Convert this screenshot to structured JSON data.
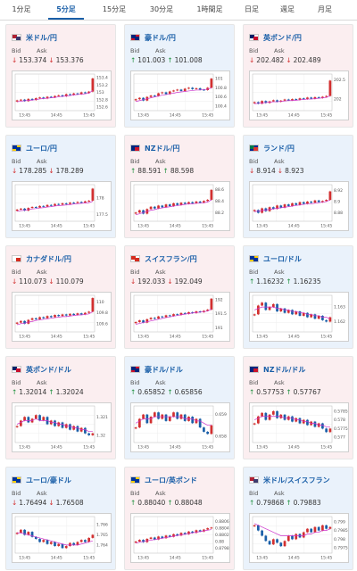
{
  "tabs": [
    {
      "label": "1分足",
      "active": false
    },
    {
      "label": "5分足",
      "active": true
    },
    {
      "label": "15分足",
      "active": false
    },
    {
      "label": "30分足",
      "active": false
    },
    {
      "label": "1時間足",
      "active": false
    },
    {
      "label": "日足",
      "active": false
    },
    {
      "label": "週足",
      "active": false
    },
    {
      "label": "月足",
      "active": false
    }
  ],
  "bid_label": "Bid",
  "ask_label": "Ask",
  "colors": {
    "up": "#1a8f3a",
    "down": "#d23030",
    "ma": "#cc33cc",
    "accent": "#1a5fa8"
  },
  "cards": [
    {
      "pair": "米ドル/円",
      "flag": "us-flag",
      "bg": "pink",
      "dir": "down",
      "bid": "153.374",
      "ask": "153.376",
      "chart_data": {
        "type": "candlestick",
        "x_ticks": [
          "13:45",
          "14:45",
          "15:45"
        ],
        "y_ticks": [
          "153.4",
          "153.2",
          "153",
          "152.8",
          "152.6"
        ],
        "ylim": [
          152.5,
          153.5
        ],
        "close": [
          152.78,
          152.8,
          152.76,
          152.82,
          152.79,
          152.84,
          152.86,
          152.83,
          152.88,
          152.86,
          152.9,
          152.92,
          152.89,
          152.95,
          152.93,
          152.97,
          152.95,
          153.0,
          152.98,
          153.02,
          153.38
        ],
        "ma": [
          152.74,
          152.76,
          152.77,
          152.78,
          152.79,
          152.8,
          152.82,
          152.83,
          152.84,
          152.85,
          152.86,
          152.88,
          152.89,
          152.9,
          152.91,
          152.93,
          152.94,
          152.95,
          152.96,
          152.98,
          153.05
        ]
      }
    },
    {
      "pair": "豪ドル/円",
      "flag": "au-flag",
      "bg": "blue",
      "dir": "up",
      "bid": "101.003",
      "ask": "101.008",
      "chart_data": {
        "type": "candlestick",
        "x_ticks": [
          "13:45",
          "14:45",
          "15:45"
        ],
        "y_ticks": [
          "101",
          "100.8",
          "100.6",
          "100.4"
        ],
        "ylim": [
          100.3,
          101.1
        ],
        "close": [
          100.55,
          100.58,
          100.52,
          100.6,
          100.63,
          100.62,
          100.68,
          100.7,
          100.66,
          100.72,
          100.74,
          100.76,
          100.73,
          100.78,
          100.8,
          100.77,
          100.79,
          100.76,
          100.75,
          100.8,
          101.0
        ],
        "ma": [
          100.5,
          100.52,
          100.54,
          100.56,
          100.58,
          100.6,
          100.62,
          100.64,
          100.65,
          100.67,
          100.68,
          100.7,
          100.71,
          100.72,
          100.73,
          100.74,
          100.75,
          100.75,
          100.76,
          100.77,
          100.8
        ]
      }
    },
    {
      "pair": "英ポンド/円",
      "flag": "gb-flag",
      "bg": "pink",
      "dir": "down",
      "bid": "202.482",
      "ask": "202.489",
      "chart_data": {
        "type": "candlestick",
        "x_ticks": [
          "13:45",
          "14:45",
          "15:45"
        ],
        "y_ticks": [
          "202.5",
          "202"
        ],
        "ylim": [
          201.7,
          202.65
        ],
        "close": [
          201.92,
          201.88,
          201.95,
          201.9,
          201.94,
          201.97,
          201.93,
          201.96,
          201.99,
          201.97,
          202.0,
          201.98,
          202.02,
          202.0,
          202.04,
          202.01,
          202.05,
          202.03,
          202.06,
          202.08,
          202.48
        ],
        "ma": [
          201.88,
          201.89,
          201.9,
          201.91,
          201.92,
          201.93,
          201.93,
          201.94,
          201.95,
          201.96,
          201.96,
          201.97,
          201.98,
          201.99,
          202.0,
          202.0,
          202.01,
          202.02,
          202.03,
          202.04,
          202.09
        ]
      }
    },
    {
      "pair": "ユーロ/円",
      "flag": "eu-flag",
      "bg": "blue",
      "dir": "down",
      "bid": "178.285",
      "ask": "178.289",
      "chart_data": {
        "type": "candlestick",
        "x_ticks": [
          "13:45",
          "14:45",
          "15:45"
        ],
        "y_ticks": [
          "178",
          "177.5"
        ],
        "ylim": [
          177.3,
          178.4
        ],
        "close": [
          177.65,
          177.68,
          177.62,
          177.7,
          177.73,
          177.71,
          177.76,
          177.74,
          177.79,
          177.77,
          177.82,
          177.8,
          177.84,
          177.82,
          177.86,
          177.85,
          177.88,
          177.86,
          177.9,
          177.92,
          178.28
        ],
        "ma": [
          177.6,
          177.62,
          177.63,
          177.65,
          177.67,
          177.68,
          177.7,
          177.71,
          177.73,
          177.74,
          177.76,
          177.77,
          177.78,
          177.79,
          177.8,
          177.82,
          177.83,
          177.84,
          177.85,
          177.86,
          177.9
        ]
      }
    },
    {
      "pair": "NZドル/円",
      "flag": "nz-flag",
      "bg": "pink",
      "dir": "up",
      "bid": "88.591",
      "ask": "88.598",
      "chart_data": {
        "type": "candlestick",
        "x_ticks": [
          "13:45",
          "14:45",
          "15:45"
        ],
        "y_ticks": [
          "88.6",
          "88.4",
          "88.2"
        ],
        "ylim": [
          88.05,
          88.68
        ],
        "close": [
          88.2,
          88.24,
          88.18,
          88.26,
          88.3,
          88.27,
          88.32,
          88.29,
          88.34,
          88.31,
          88.36,
          88.33,
          88.37,
          88.35,
          88.38,
          88.36,
          88.39,
          88.37,
          88.4,
          88.42,
          88.59
        ],
        "ma": [
          88.16,
          88.18,
          88.2,
          88.22,
          88.24,
          88.25,
          88.27,
          88.28,
          88.29,
          88.3,
          88.31,
          88.32,
          88.33,
          88.34,
          88.35,
          88.35,
          88.36,
          88.36,
          88.37,
          88.38,
          88.42
        ]
      }
    },
    {
      "pair": "ランド/円",
      "flag": "za-flag",
      "bg": "blue",
      "dir": "down",
      "bid": "8.914",
      "ask": "8.923",
      "chart_data": {
        "type": "candlestick",
        "x_ticks": [
          "13:45",
          "14:45",
          "15:45"
        ],
        "y_ticks": [
          "8.92",
          "8.9",
          "8.88"
        ],
        "ylim": [
          8.865,
          8.93
        ],
        "close": [
          8.885,
          8.88,
          8.888,
          8.883,
          8.89,
          8.887,
          8.893,
          8.889,
          8.895,
          8.892,
          8.897,
          8.894,
          8.899,
          8.896,
          8.9,
          8.898,
          8.902,
          8.899,
          8.901,
          8.903,
          8.918
        ],
        "ma": [
          8.882,
          8.883,
          8.884,
          8.885,
          8.886,
          8.887,
          8.888,
          8.889,
          8.89,
          8.891,
          8.892,
          8.893,
          8.894,
          8.895,
          8.896,
          8.896,
          8.897,
          8.898,
          8.899,
          8.9,
          8.903
        ]
      }
    },
    {
      "pair": "カナダドル/円",
      "flag": "ca-flag",
      "bg": "pink",
      "dir": "down",
      "bid": "110.073",
      "ask": "110.079",
      "chart_data": {
        "type": "candlestick",
        "x_ticks": [
          "13:45",
          "14:45",
          "15:45"
        ],
        "y_ticks": [
          "110",
          "109.8",
          "109.6"
        ],
        "ylim": [
          109.45,
          110.12
        ],
        "close": [
          109.62,
          109.65,
          109.6,
          109.67,
          109.7,
          109.68,
          109.72,
          109.7,
          109.74,
          109.72,
          109.76,
          109.74,
          109.77,
          109.75,
          109.78,
          109.76,
          109.79,
          109.77,
          109.8,
          109.82,
          110.07
        ],
        "ma": [
          109.58,
          109.6,
          109.61,
          109.63,
          109.64,
          109.66,
          109.67,
          109.68,
          109.69,
          109.7,
          109.71,
          109.72,
          109.73,
          109.73,
          109.74,
          109.75,
          109.76,
          109.76,
          109.77,
          109.78,
          109.82
        ]
      }
    },
    {
      "pair": "スイスフラン/円",
      "flag": "ch-flag",
      "bg": "pink",
      "dir": "down",
      "bid": "192.033",
      "ask": "192.049",
      "chart_data": {
        "type": "candlestick",
        "x_ticks": [
          "13:45",
          "14:45",
          "15:45"
        ],
        "y_ticks": [
          "192",
          "191.5",
          "191"
        ],
        "ylim": [
          190.85,
          192.15
        ],
        "close": [
          191.2,
          191.26,
          191.18,
          191.3,
          191.35,
          191.32,
          191.4,
          191.37,
          191.44,
          191.41,
          191.48,
          191.45,
          191.52,
          191.49,
          191.55,
          191.52,
          191.58,
          191.55,
          191.6,
          191.64,
          192.03
        ],
        "ma": [
          191.12,
          191.15,
          191.18,
          191.21,
          191.24,
          191.27,
          191.3,
          191.33,
          191.36,
          191.38,
          191.41,
          191.43,
          191.46,
          191.48,
          191.5,
          191.52,
          191.54,
          191.55,
          191.57,
          191.59,
          191.66
        ]
      }
    },
    {
      "pair": "ユーロ/ドル",
      "flag": "eu-flag",
      "bg": "blue",
      "dir": "up",
      "bid": "1.16232",
      "ask": "1.16235",
      "chart_data": {
        "type": "candlestick",
        "x_ticks": [
          "13:45",
          "14:45",
          "15:45"
        ],
        "y_ticks": [
          "1.163",
          "1.162"
        ],
        "ylim": [
          1.1613,
          1.1638
        ],
        "close": [
          1.1625,
          1.1631,
          1.1633,
          1.1628,
          1.163,
          1.1632,
          1.1627,
          1.1629,
          1.1626,
          1.1628,
          1.1625,
          1.1627,
          1.1624,
          1.1626,
          1.1623,
          1.1625,
          1.1622,
          1.1624,
          1.1621,
          1.162,
          1.1623
        ],
        "ma": [
          1.1628,
          1.1629,
          1.163,
          1.163,
          1.163,
          1.163,
          1.1629,
          1.1629,
          1.1628,
          1.1628,
          1.1627,
          1.1627,
          1.1626,
          1.1626,
          1.1625,
          1.1625,
          1.1624,
          1.1624,
          1.1623,
          1.1623,
          1.1622
        ]
      }
    },
    {
      "pair": "英ポンド/ドル",
      "flag": "gb-flag",
      "bg": "pink",
      "dir": "up",
      "bid": "1.32014",
      "ask": "1.32024",
      "chart_data": {
        "type": "candlestick",
        "x_ticks": [
          "13:45",
          "14:45",
          "15:45"
        ],
        "y_ticks": [
          "1.321",
          "1.32"
        ],
        "ylim": [
          1.3196,
          1.3216
        ],
        "close": [
          1.3205,
          1.3208,
          1.321,
          1.3207,
          1.3209,
          1.3211,
          1.3208,
          1.321,
          1.3206,
          1.3208,
          1.3205,
          1.3207,
          1.3204,
          1.3206,
          1.3203,
          1.3205,
          1.3202,
          1.3204,
          1.3201,
          1.32,
          1.3201
        ],
        "ma": [
          1.3206,
          1.3207,
          1.3208,
          1.3208,
          1.3208,
          1.3209,
          1.3208,
          1.3208,
          1.3208,
          1.3207,
          1.3207,
          1.3206,
          1.3206,
          1.3205,
          1.3205,
          1.3204,
          1.3204,
          1.3203,
          1.3203,
          1.3202,
          1.3202
        ]
      }
    },
    {
      "pair": "豪ドル/ドル",
      "flag": "au-flag",
      "bg": "blue",
      "dir": "up",
      "bid": "0.65852",
      "ask": "0.65856",
      "chart_data": {
        "type": "candlestick",
        "x_ticks": [
          "13:45",
          "14:45",
          "15:45"
        ],
        "y_ticks": [
          "0.659",
          "0.658"
        ],
        "ylim": [
          0.6577,
          0.6594
        ],
        "close": [
          0.6584,
          0.6588,
          0.659,
          0.6586,
          0.6589,
          0.6591,
          0.6588,
          0.659,
          0.6587,
          0.6589,
          0.6591,
          0.6588,
          0.659,
          0.6587,
          0.6589,
          0.6586,
          0.6588,
          0.6584,
          0.6582,
          0.6581,
          0.6585
        ],
        "ma": [
          0.6586,
          0.6587,
          0.6588,
          0.6588,
          0.6588,
          0.6589,
          0.6589,
          0.6589,
          0.6589,
          0.6589,
          0.6589,
          0.6589,
          0.6589,
          0.6588,
          0.6588,
          0.6588,
          0.6587,
          0.6587,
          0.6586,
          0.6585,
          0.6585
        ]
      }
    },
    {
      "pair": "NZドル/ドル",
      "flag": "nz-flag",
      "bg": "pink",
      "dir": "up",
      "bid": "0.57753",
      "ask": "0.57767",
      "chart_data": {
        "type": "candlestick",
        "x_ticks": [
          "13:45",
          "14:45",
          "15:45"
        ],
        "y_ticks": [
          "0.5785",
          "0.578",
          "0.5775",
          "0.577"
        ],
        "ylim": [
          0.5767,
          0.5788
        ],
        "close": [
          0.5778,
          0.5782,
          0.5784,
          0.578,
          0.5783,
          0.5785,
          0.5781,
          0.5783,
          0.578,
          0.5782,
          0.5779,
          0.5781,
          0.5778,
          0.578,
          0.5777,
          0.5779,
          0.5776,
          0.5778,
          0.5775,
          0.5773,
          0.5775
        ],
        "ma": [
          0.578,
          0.5781,
          0.5782,
          0.5782,
          0.5782,
          0.5782,
          0.5782,
          0.5782,
          0.5781,
          0.5781,
          0.5781,
          0.578,
          0.578,
          0.5779,
          0.5779,
          0.5778,
          0.5778,
          0.5777,
          0.5777,
          0.5776,
          0.5776
        ]
      }
    },
    {
      "pair": "ユーロ/豪ドル",
      "flag": "eu-flag",
      "bg": "blue",
      "dir": "down",
      "bid": "1.76494",
      "ask": "1.76508",
      "chart_data": {
        "type": "candlestick",
        "x_ticks": [
          "13:45",
          "14:45",
          "15:45"
        ],
        "y_ticks": [
          "1.766",
          "1.765",
          "1.764"
        ],
        "ylim": [
          1.7632,
          1.7668
        ],
        "close": [
          1.7652,
          1.7655,
          1.765,
          1.7653,
          1.7648,
          1.7646,
          1.7643,
          1.7645,
          1.7641,
          1.7643,
          1.7639,
          1.7641,
          1.7637,
          1.7639,
          1.7642,
          1.764,
          1.7643,
          1.7645,
          1.7643,
          1.7647,
          1.765
        ],
        "ma": [
          1.7652,
          1.7652,
          1.7651,
          1.765,
          1.7649,
          1.7648,
          1.7647,
          1.7646,
          1.7645,
          1.7644,
          1.7643,
          1.7642,
          1.7641,
          1.764,
          1.764,
          1.764,
          1.764,
          1.7641,
          1.7642,
          1.7643,
          1.7644
        ]
      }
    },
    {
      "pair": "ユーロ/英ポンド",
      "flag": "eu-flag",
      "bg": "pink",
      "dir": "up",
      "bid": "0.88040",
      "ask": "0.88048",
      "chart_data": {
        "type": "candlestick",
        "x_ticks": [
          "13:45",
          "14:45",
          "15:45"
        ],
        "y_ticks": [
          "0.8806",
          "0.8804",
          "0.8802",
          "0.88",
          "0.8798"
        ],
        "ylim": [
          0.87965,
          0.88075
        ],
        "close": [
          0.88,
          0.88005,
          0.87998,
          0.88008,
          0.88012,
          0.88006,
          0.88015,
          0.8801,
          0.88018,
          0.88014,
          0.88022,
          0.88018,
          0.88026,
          0.88022,
          0.8803,
          0.88026,
          0.88034,
          0.8803,
          0.88036,
          0.8804,
          0.88042
        ],
        "ma": [
          0.87995,
          0.87998,
          0.88,
          0.88002,
          0.88004,
          0.88006,
          0.88008,
          0.8801,
          0.88012,
          0.88014,
          0.88016,
          0.88018,
          0.8802,
          0.88022,
          0.88024,
          0.88026,
          0.88028,
          0.8803,
          0.88032,
          0.88034,
          0.88036
        ]
      }
    },
    {
      "pair": "米ドル/スイスフラン",
      "flag": "us-flag",
      "bg": "blue",
      "dir": "up",
      "bid": "0.79868",
      "ask": "0.79883",
      "chart_data": {
        "type": "candlestick",
        "x_ticks": [
          "13:45",
          "14:45",
          "15:45"
        ],
        "y_ticks": [
          "0.799",
          "0.7985",
          "0.798",
          "0.7975"
        ],
        "ylim": [
          0.7972,
          0.7993
        ],
        "close": [
          0.7988,
          0.7985,
          0.7982,
          0.7979,
          0.7977,
          0.798,
          0.7978,
          0.7976,
          0.7979,
          0.7982,
          0.798,
          0.7983,
          0.7981,
          0.7984,
          0.7986,
          0.7984,
          0.7987,
          0.7985,
          0.7988,
          0.7986,
          0.7987
        ],
        "ma": [
          0.7989,
          0.7988,
          0.7987,
          0.7986,
          0.7985,
          0.7984,
          0.7983,
          0.7982,
          0.7982,
          0.7982,
          0.7982,
          0.7982,
          0.7982,
          0.7982,
          0.7983,
          0.7983,
          0.7984,
          0.7984,
          0.7985,
          0.7985,
          0.7986
        ]
      }
    }
  ]
}
